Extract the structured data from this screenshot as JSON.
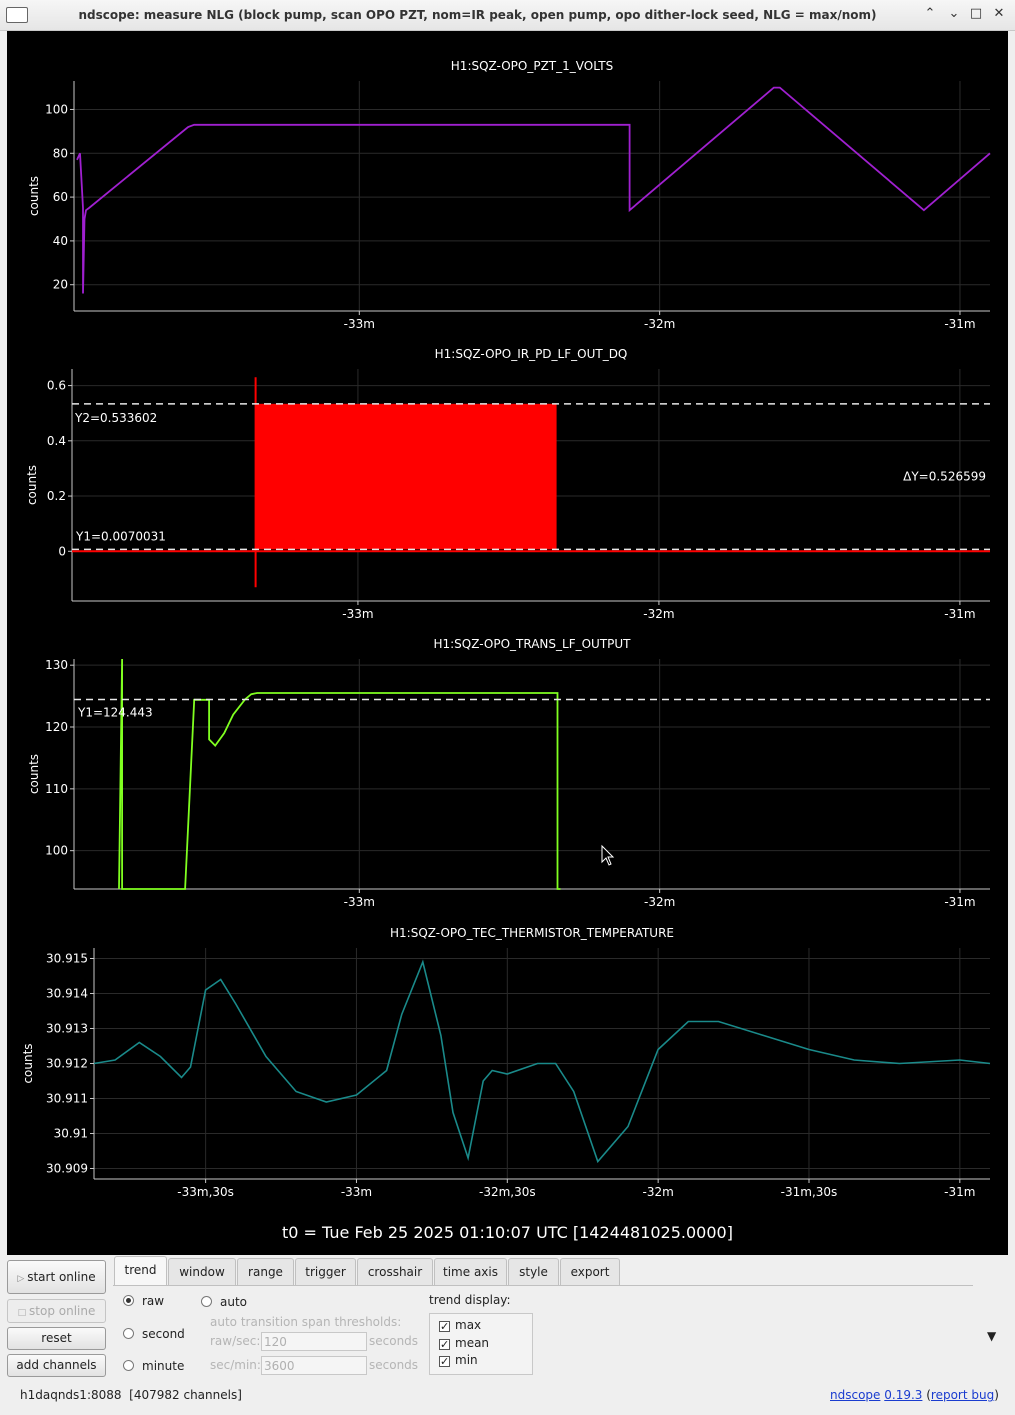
{
  "window": {
    "title": "ndscope: measure NLG (block pump, scan OPO PZT, nom=IR peak, open pump, opo dither-lock seed, NLG = max/nom)",
    "minimize": "⌃",
    "restore": "⌄",
    "maximize": "□",
    "close": "✕"
  },
  "chart_data": [
    {
      "type": "line",
      "title": "H1:SQZ-OPO_PZT_1_VOLTS",
      "ylabel": "counts",
      "color": "#a020d0",
      "ylim": [
        8,
        113
      ],
      "yticks": [
        20,
        40,
        60,
        80,
        100
      ],
      "xlim": [
        -33.95,
        -30.9
      ],
      "xticks": [
        {
          "v": -33,
          "label": "-33m"
        },
        {
          "v": -32,
          "label": "-32m"
        },
        {
          "v": -31,
          "label": "-31m"
        }
      ],
      "x": [
        -33.94,
        -33.93,
        -33.92,
        -33.92,
        -33.915,
        -33.91,
        -33.9,
        -33.57,
        -33.55,
        -32.1,
        -32.1,
        -31.62,
        -31.6,
        -31.12,
        -30.9
      ],
      "y": [
        77,
        80,
        55,
        16,
        50,
        54,
        55,
        92,
        93,
        93,
        54,
        110,
        110,
        54,
        80
      ]
    },
    {
      "type": "line",
      "title": "H1:SQZ-OPO_IR_PD_LF_OUT_DQ",
      "ylabel": "counts",
      "color": "#ff0000",
      "ylim": [
        -0.18,
        0.66
      ],
      "yticks": [
        0,
        0.2,
        0.4,
        0.6
      ],
      "ytick_labels": [
        "0",
        "0.2",
        "0.4",
        "0.6"
      ],
      "xlim": [
        -33.95,
        -30.9
      ],
      "xticks": [
        {
          "v": -33,
          "label": "-33m"
        },
        {
          "v": -32,
          "label": "-32m"
        },
        {
          "v": -31,
          "label": "-31m"
        }
      ],
      "filled_region": {
        "x_start": -33.34,
        "x_end": -32.34,
        "ymin": 0.007,
        "ymax": 0.534
      },
      "baseline": 0.0,
      "cursors": {
        "Y1": "Y1=0.0070031",
        "Y2": "Y2=0.533602",
        "dY": "ΔY=0.526599",
        "y1": 0.007,
        "y2": 0.5336
      }
    },
    {
      "type": "line",
      "title": "H1:SQZ-OPO_TRANS_LF_OUTPUT",
      "ylabel": "counts",
      "color": "#80ff20",
      "ylim": [
        93.8,
        131
      ],
      "yticks": [
        100,
        110,
        120,
        130
      ],
      "xlim": [
        -33.95,
        -30.9
      ],
      "xticks": [
        {
          "v": -33,
          "label": "-33m"
        },
        {
          "v": -32,
          "label": "-32m"
        },
        {
          "v": -31,
          "label": "-31m"
        }
      ],
      "x": [
        -33.8,
        -33.79,
        -33.79,
        -33.78,
        -33.58,
        -33.55,
        -33.55,
        -33.5,
        -33.5,
        -33.48,
        -33.45,
        -33.42,
        -33.38,
        -33.36,
        -33.34,
        -32.34,
        -32.34,
        -32.33
      ],
      "y": [
        93.8,
        131,
        93.8,
        93.8,
        93.8,
        124,
        124.4,
        124.4,
        118,
        117,
        119,
        122,
        124.5,
        125.3,
        125.5,
        125.5,
        93.8,
        93.8
      ],
      "cursors": {
        "Y1": "Y1=124.443",
        "y1": 124.443
      }
    },
    {
      "type": "line",
      "title": "H1:SQZ-OPO_TEC_THERMISTOR_TEMPERATURE",
      "ylabel": "counts",
      "color": "#1a8a8a",
      "ylim": [
        30.9087,
        30.9153
      ],
      "yticks": [
        30.909,
        30.91,
        30.911,
        30.912,
        30.913,
        30.914,
        30.915
      ],
      "ytick_labels": [
        "30.909",
        "30.91",
        "30.911",
        "30.912",
        "30.913",
        "30.914",
        "30.915"
      ],
      "xlim": [
        -33.87,
        -30.9
      ],
      "xticks": [
        {
          "v": -33.5,
          "label": "-33m,30s"
        },
        {
          "v": -33,
          "label": "-33m"
        },
        {
          "v": -32.5,
          "label": "-32m,30s"
        },
        {
          "v": -32,
          "label": "-32m"
        },
        {
          "v": -31.5,
          "label": "-31m,30s"
        },
        {
          "v": -31,
          "label": "-31m"
        }
      ],
      "x": [
        -33.87,
        -33.8,
        -33.72,
        -33.65,
        -33.58,
        -33.55,
        -33.5,
        -33.45,
        -33.4,
        -33.3,
        -33.2,
        -33.1,
        -33.0,
        -32.9,
        -32.85,
        -32.78,
        -32.72,
        -32.68,
        -32.63,
        -32.58,
        -32.55,
        -32.5,
        -32.4,
        -32.34,
        -32.28,
        -32.2,
        -32.1,
        -32.0,
        -31.9,
        -31.8,
        -31.65,
        -31.5,
        -31.35,
        -31.2,
        -31.0,
        -30.9
      ],
      "y": [
        30.912,
        30.9121,
        30.9126,
        30.9122,
        30.9116,
        30.9119,
        30.9141,
        30.9144,
        30.9137,
        30.9122,
        30.9112,
        30.9109,
        30.9111,
        30.9118,
        30.9134,
        30.9149,
        30.9128,
        30.9106,
        30.9093,
        30.9115,
        30.9118,
        30.9117,
        30.912,
        30.912,
        30.9112,
        30.9092,
        30.9102,
        30.9124,
        30.9132,
        30.9132,
        30.9128,
        30.9124,
        30.9121,
        30.912,
        30.9121,
        30.912
      ]
    }
  ],
  "t0": "t0 = Tue Feb 25 2025 01:10:07 UTC [1424481025.0000]",
  "buttons": {
    "start_online": "start online",
    "stop_online": "stop online",
    "reset": "reset",
    "add_channels": "add channels"
  },
  "tabs": [
    "trend",
    "window",
    "range",
    "trigger",
    "crosshair",
    "time axis",
    "style",
    "export"
  ],
  "trend": {
    "raw": "raw",
    "auto": "auto",
    "second": "second",
    "minute": "minute",
    "thresholds_label": "auto transition span thresholds:",
    "raw_sec_label": "raw/sec:",
    "raw_sec_value": "120",
    "sec_min_label": "sec/min:",
    "sec_min_value": "3600",
    "seconds": "seconds",
    "display_label": "trend display:",
    "max": "max",
    "mean": "mean",
    "min": "min"
  },
  "status": {
    "server": "h1daqnds1:8088",
    "channels": "[407982 channels]",
    "app": "ndscope",
    "version": "0.19.3",
    "report": "report bug"
  },
  "colors": {
    "grid": "#2a2a2a",
    "axis": "#c8c8c8",
    "cursor": "#e8e8e8"
  }
}
